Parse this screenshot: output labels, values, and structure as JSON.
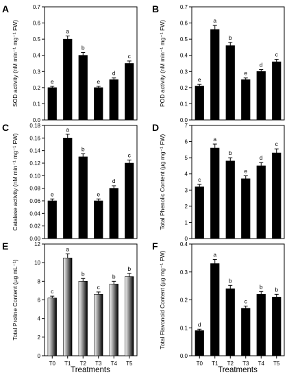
{
  "x_axis_title": "Treatments",
  "chart_data": [
    {
      "type": "bar",
      "panel": "A",
      "categories": [
        "T0",
        "T1",
        "T2",
        "T3",
        "T4",
        "T5"
      ],
      "values": [
        0.2,
        0.5,
        0.4,
        0.2,
        0.25,
        0.35
      ],
      "errors": [
        0.008,
        0.02,
        0.018,
        0.008,
        0.01,
        0.015
      ],
      "labels": [
        "e",
        "a",
        "b",
        "e",
        "d",
        "c"
      ],
      "ylabel": "SOD activity (nM min⁻¹ mg⁻¹ FW)",
      "ylim": [
        0,
        0.7
      ],
      "yticks": [
        0.0,
        0.1,
        0.2,
        0.3,
        0.4,
        0.5,
        0.6,
        0.7
      ],
      "ytick_labels": [
        "0.0",
        "0.1",
        "0.2",
        "0.3",
        "0.4",
        "0.5",
        "0.6",
        "0.7"
      ],
      "fill": "solid"
    },
    {
      "type": "bar",
      "panel": "B",
      "categories": [
        "T0",
        "T1",
        "T2",
        "T3",
        "T4",
        "T5"
      ],
      "values": [
        0.21,
        0.56,
        0.46,
        0.25,
        0.3,
        0.36
      ],
      "errors": [
        0.01,
        0.025,
        0.02,
        0.01,
        0.012,
        0.015
      ],
      "labels": [
        "e",
        "a",
        "b",
        "e",
        "d",
        "c"
      ],
      "ylabel": "POD activity (nM min⁻¹ mg⁻¹ FW)",
      "ylim": [
        0,
        0.7
      ],
      "yticks": [
        0.0,
        0.1,
        0.2,
        0.3,
        0.4,
        0.5,
        0.6,
        0.7
      ],
      "ytick_labels": [
        "0.0",
        "0.1",
        "0.2",
        "0.3",
        "0.4",
        "0.5",
        "0.6",
        "0.7"
      ],
      "fill": "solid"
    },
    {
      "type": "bar",
      "panel": "C",
      "categories": [
        "T0",
        "T1",
        "T2",
        "T3",
        "T4",
        "T5"
      ],
      "values": [
        0.06,
        0.16,
        0.13,
        0.06,
        0.08,
        0.12
      ],
      "errors": [
        0.003,
        0.006,
        0.005,
        0.003,
        0.004,
        0.005
      ],
      "labels": [
        "e",
        "a",
        "b",
        "e",
        "d",
        "c"
      ],
      "ylabel": "Catalase activity (nM min⁻¹ mg⁻¹ FW)",
      "ylim": [
        0,
        0.18
      ],
      "yticks": [
        0.0,
        0.02,
        0.04,
        0.06,
        0.08,
        0.1,
        0.12,
        0.14,
        0.16,
        0.18
      ],
      "ytick_labels": [
        "0.00",
        "0.02",
        "0.04",
        "0.06",
        "0.08",
        "0.10",
        "0.12",
        "0.14",
        "0.16",
        "0.18"
      ],
      "fill": "solid"
    },
    {
      "type": "bar",
      "panel": "D",
      "categories": [
        "T0",
        "T1",
        "T2",
        "T3",
        "T4",
        "T5"
      ],
      "values": [
        3.2,
        5.6,
        4.8,
        3.7,
        4.5,
        5.3
      ],
      "errors": [
        0.15,
        0.25,
        0.2,
        0.18,
        0.2,
        0.25
      ],
      "labels": [
        "c",
        "a",
        "b",
        "e",
        "d",
        "c"
      ],
      "ylabel": "Total Phenolic Content (µg mg⁻¹ FW)",
      "ylim": [
        0,
        7
      ],
      "yticks": [
        0,
        1,
        2,
        3,
        4,
        5,
        6,
        7
      ],
      "ytick_labels": [
        "0",
        "1",
        "2",
        "3",
        "4",
        "5",
        "6",
        "7"
      ],
      "fill": "solid"
    },
    {
      "type": "bar",
      "panel": "E",
      "categories": [
        "T0",
        "T1",
        "T2",
        "T3",
        "T4",
        "T5"
      ],
      "values": [
        6.2,
        10.5,
        8.0,
        6.6,
        7.7,
        8.5
      ],
      "errors": [
        0.2,
        0.45,
        0.3,
        0.25,
        0.3,
        0.35
      ],
      "labels": [
        "c",
        "a",
        "b",
        "c",
        "b",
        "b"
      ],
      "ylabel": "Total Proline Content (µg mL⁻¹)",
      "ylim": [
        0,
        12
      ],
      "yticks": [
        0,
        2,
        4,
        6,
        8,
        10,
        12
      ],
      "ytick_labels": [
        "0",
        "2",
        "4",
        "6",
        "8",
        "10",
        "12"
      ],
      "fill": "gradient"
    },
    {
      "type": "bar",
      "panel": "F",
      "categories": [
        "T0",
        "T1",
        "T2",
        "T3",
        "T4",
        "T5"
      ],
      "values": [
        0.09,
        0.33,
        0.24,
        0.17,
        0.22,
        0.21
      ],
      "errors": [
        0.005,
        0.015,
        0.012,
        0.008,
        0.01,
        0.01
      ],
      "labels": [
        "d",
        "a",
        "b",
        "c",
        "b",
        "b"
      ],
      "ylabel": "Total Flavonoid Content (µg mg⁻¹ FW)",
      "ylim": [
        0,
        0.4
      ],
      "yticks": [
        0.0,
        0.1,
        0.2,
        0.3,
        0.4
      ],
      "ytick_labels": [
        "0.0",
        "0.1",
        "0.2",
        "0.3",
        "0.4"
      ],
      "fill": "solid"
    }
  ]
}
